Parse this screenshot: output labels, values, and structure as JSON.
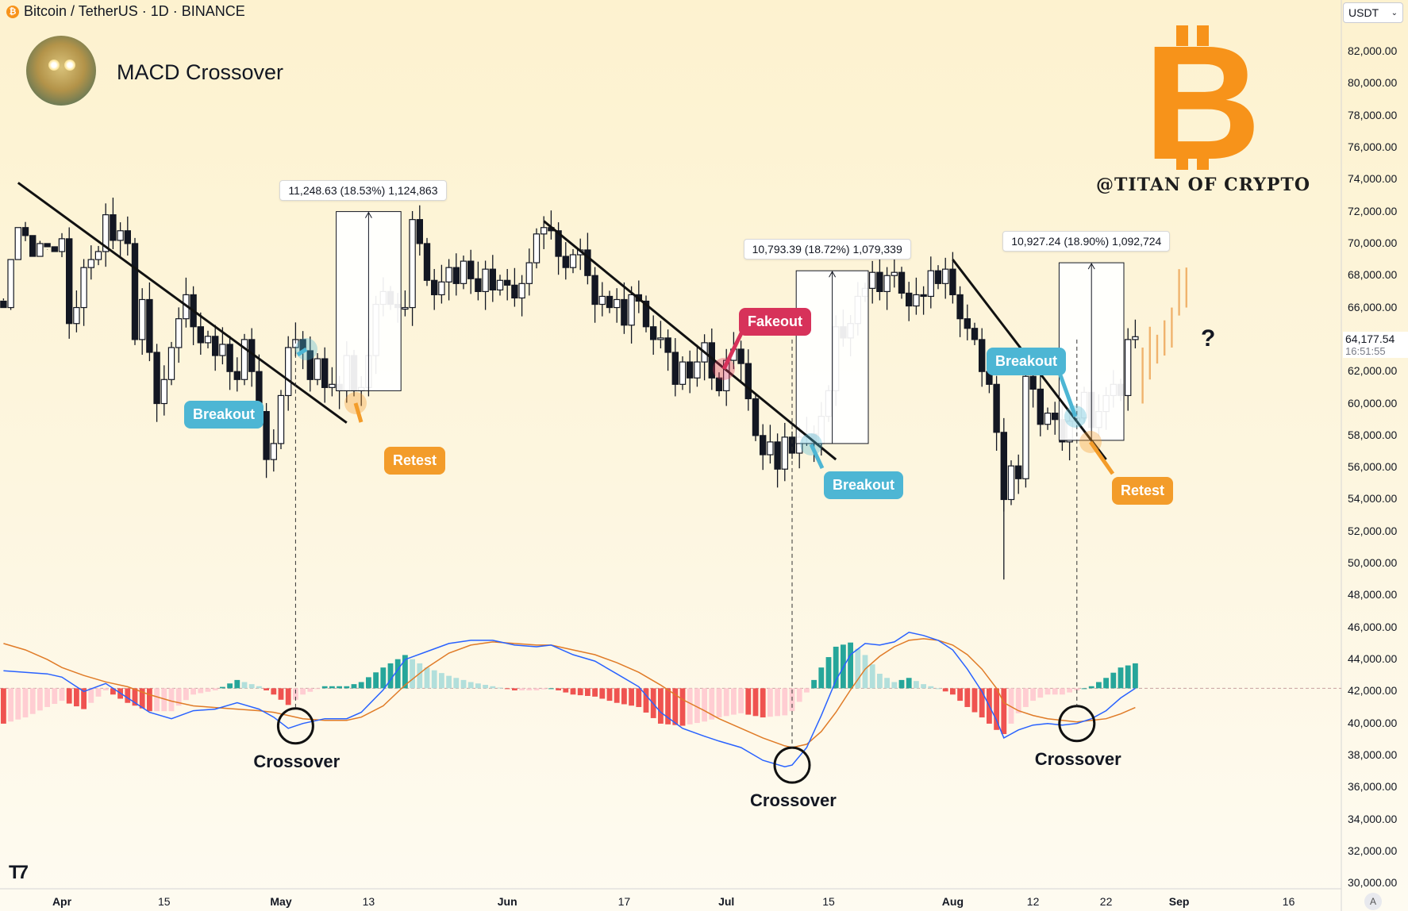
{
  "header": {
    "title": "Bitcoin / TetherUS · 1D · BINANCE",
    "coin_icon": "btc-coin-icon"
  },
  "chart_title": "MACD Crossover",
  "brand": "@TITAN OF CRYPTO",
  "currency_select": "USDT",
  "bitcoin_logo": {
    "glyph": "B",
    "color": "#f7931a"
  },
  "colors": {
    "up": "#ffffff",
    "down": "#131722",
    "breakout": "#4db6d4",
    "retest": "#f39c2a",
    "fakeout": "#d7325a",
    "macd_line": "#2962ff",
    "signal_line": "#e07b27",
    "hist_pos_strong": "#26a69a",
    "hist_pos_weak": "#b2dfdb",
    "hist_neg_strong": "#ef5350",
    "hist_neg_weak": "#ffcdd2",
    "projection": "#f0b36d"
  },
  "last_price": {
    "value": "64,177.54",
    "countdown": "16:51:55"
  },
  "question_mark": "?",
  "chart_data": {
    "type": "candlestick",
    "title": "MACD Crossover",
    "ylim": [
      30000,
      83000
    ],
    "y_ticks": [
      "82,000.00",
      "80,000.00",
      "78,000.00",
      "76,000.00",
      "74,000.00",
      "72,000.00",
      "70,000.00",
      "68,000.00",
      "66,000.00",
      "64,000.00",
      "62,000.00",
      "60,000.00",
      "58,000.00",
      "56,000.00",
      "54,000.00",
      "52,000.00",
      "50,000.00",
      "48,000.00",
      "46,000.00",
      "44,000.00",
      "42,000.00",
      "40,000.00",
      "38,000.00",
      "36,000.00",
      "34,000.00",
      "32,000.00",
      "30,000.00"
    ],
    "x_ticks": [
      {
        "label": "Apr",
        "bold": true,
        "day": 0
      },
      {
        "label": "15",
        "bold": false,
        "day": 14
      },
      {
        "label": "May",
        "bold": true,
        "day": 30
      },
      {
        "label": "13",
        "bold": false,
        "day": 42
      },
      {
        "label": "Jun",
        "bold": true,
        "day": 61
      },
      {
        "label": "17",
        "bold": false,
        "day": 77
      },
      {
        "label": "Jul",
        "bold": true,
        "day": 91
      },
      {
        "label": "15",
        "bold": false,
        "day": 105
      },
      {
        "label": "Aug",
        "bold": true,
        "day": 122
      },
      {
        "label": "12",
        "bold": false,
        "day": 133
      },
      {
        "label": "22",
        "bold": false,
        "day": 143
      },
      {
        "label": "Sep",
        "bold": true,
        "day": 153
      },
      {
        "label": "16",
        "bold": false,
        "day": 168
      }
    ],
    "closes": [
      [
        -8,
        66000
      ],
      [
        -7,
        69000
      ],
      [
        -6,
        71000
      ],
      [
        -5,
        70500
      ],
      [
        -4,
        69200
      ],
      [
        -3,
        70000
      ],
      [
        -2,
        69800
      ],
      [
        -1,
        69500
      ],
      [
        0,
        70300
      ],
      [
        1,
        65000
      ],
      [
        2,
        66000
      ],
      [
        3,
        68500
      ],
      [
        4,
        69000
      ],
      [
        5,
        69500
      ],
      [
        6,
        71800
      ],
      [
        7,
        70200
      ],
      [
        8,
        70800
      ],
      [
        9,
        70000
      ],
      [
        10,
        64000
      ],
      [
        11,
        66500
      ],
      [
        12,
        63200
      ],
      [
        13,
        60000
      ],
      [
        14,
        61500
      ],
      [
        15,
        63500
      ],
      [
        16,
        65300
      ],
      [
        17,
        66800
      ],
      [
        18,
        64800
      ],
      [
        19,
        63800
      ],
      [
        20,
        64200
      ],
      [
        21,
        63000
      ],
      [
        22,
        63700
      ],
      [
        23,
        62000
      ],
      [
        24,
        61500
      ],
      [
        25,
        64000
      ],
      [
        26,
        62000
      ],
      [
        27,
        59500
      ],
      [
        28,
        56500
      ],
      [
        29,
        57500
      ],
      [
        30,
        60500
      ],
      [
        31,
        63500
      ],
      [
        32,
        64000
      ],
      [
        33,
        63300
      ],
      [
        34,
        61500
      ],
      [
        35,
        62800
      ],
      [
        36,
        61000
      ],
      [
        37,
        61200
      ],
      [
        38,
        60800
      ],
      [
        39,
        63000
      ],
      [
        40,
        60800
      ],
      [
        41,
        61000
      ],
      [
        42,
        63000
      ],
      [
        43,
        66200
      ],
      [
        44,
        67000
      ],
      [
        45,
        66200
      ],
      [
        46,
        66000
      ],
      [
        47,
        66000
      ],
      [
        48,
        71500
      ],
      [
        49,
        70000
      ],
      [
        50,
        67700
      ],
      [
        51,
        66800
      ],
      [
        52,
        67600
      ],
      [
        53,
        68500
      ],
      [
        54,
        67500
      ],
      [
        55,
        68900
      ],
      [
        56,
        67800
      ],
      [
        57,
        67000
      ],
      [
        58,
        68400
      ],
      [
        59,
        67100
      ],
      [
        60,
        67700
      ],
      [
        61,
        67400
      ],
      [
        62,
        66600
      ],
      [
        63,
        67500
      ],
      [
        64,
        68800
      ],
      [
        65,
        70600
      ],
      [
        66,
        71000
      ],
      [
        67,
        70800
      ],
      [
        68,
        69200
      ],
      [
        69,
        68500
      ],
      [
        70,
        69300
      ],
      [
        71,
        69600
      ],
      [
        72,
        68000
      ],
      [
        73,
        66200
      ],
      [
        74,
        66700
      ],
      [
        75,
        66000
      ],
      [
        76,
        66500
      ],
      [
        77,
        64900
      ],
      [
        78,
        66800
      ],
      [
        79,
        66400
      ],
      [
        80,
        64800
      ],
      [
        81,
        64000
      ],
      [
        82,
        64100
      ],
      [
        83,
        63200
      ],
      [
        84,
        61200
      ],
      [
        85,
        62600
      ],
      [
        86,
        61600
      ],
      [
        87,
        62600
      ],
      [
        88,
        63800
      ],
      [
        89,
        61600
      ],
      [
        90,
        60800
      ],
      [
        91,
        62700
      ],
      [
        92,
        63400
      ],
      [
        93,
        62500
      ],
      [
        94,
        60300
      ],
      [
        95,
        58000
      ],
      [
        96,
        56800
      ],
      [
        97,
        57600
      ],
      [
        98,
        55900
      ],
      [
        99,
        57900
      ],
      [
        100,
        56900
      ],
      [
        101,
        57900
      ],
      [
        102,
        58100
      ],
      [
        103,
        57500
      ],
      [
        104,
        59200
      ],
      [
        105,
        60800
      ],
      [
        106,
        64800
      ],
      [
        107,
        64100
      ],
      [
        108,
        65000
      ],
      [
        109,
        66700
      ],
      [
        110,
        67200
      ],
      [
        111,
        68200
      ],
      [
        112,
        67000
      ],
      [
        113,
        68000
      ],
      [
        114,
        68200
      ],
      [
        115,
        66900
      ],
      [
        116,
        66100
      ],
      [
        117,
        66800
      ],
      [
        118,
        66700
      ],
      [
        119,
        68300
      ],
      [
        120,
        67500
      ],
      [
        121,
        68400
      ],
      [
        122,
        66800
      ],
      [
        123,
        65300
      ],
      [
        124,
        64700
      ],
      [
        125,
        64000
      ],
      [
        126,
        62000
      ],
      [
        127,
        61200
      ],
      [
        128,
        58200
      ],
      [
        129,
        54000
      ],
      [
        130,
        56100
      ],
      [
        131,
        55300
      ],
      [
        132,
        61700
      ],
      [
        133,
        60900
      ],
      [
        134,
        58700
      ],
      [
        135,
        59400
      ],
      [
        136,
        59000
      ],
      [
        137,
        57600
      ],
      [
        138,
        58900
      ],
      [
        139,
        59100
      ],
      [
        140,
        60700
      ],
      [
        141,
        58500
      ],
      [
        142,
        59500
      ],
      [
        143,
        60500
      ],
      [
        144,
        61200
      ],
      [
        145,
        60500
      ],
      [
        146,
        64000
      ],
      [
        147,
        64177
      ]
    ],
    "projection_bars": [
      {
        "day": 148,
        "low": 60000,
        "high": 63500
      },
      {
        "day": 149,
        "low": 61500,
        "high": 64800
      },
      {
        "day": 150,
        "low": 62500,
        "high": 64300
      },
      {
        "day": 151,
        "low": 63000,
        "high": 65200
      },
      {
        "day": 152,
        "low": 63500,
        "high": 66000
      },
      {
        "day": 153,
        "low": 65500,
        "high": 68400
      },
      {
        "day": 154,
        "low": 66000,
        "high": 68500
      }
    ],
    "trendlines": [
      {
        "from": [
          -6,
          73800
        ],
        "to": [
          39,
          58800
        ]
      },
      {
        "from": [
          66,
          71400
        ],
        "to": [
          106,
          56500
        ]
      },
      {
        "from": [
          122,
          69000
        ],
        "to": [
          143,
          56500
        ]
      }
    ],
    "measure_boxes": [
      {
        "label": "11,248.63 (18.53%) 1,124,863",
        "from_day": 38,
        "to_day": 46,
        "low": 60800,
        "high": 72000
      },
      {
        "label": "10,793.39 (18.72%) 1,079,339",
        "from_day": 101,
        "to_day": 110,
        "low": 57500,
        "high": 68300
      },
      {
        "label": "10,927.24 (18.90%) 1,092,724",
        "from_day": 137,
        "to_day": 145,
        "low": 57700,
        "high": 68800
      }
    ],
    "callouts": [
      {
        "label": "Breakout",
        "kind": "breakout"
      },
      {
        "label": "Retest",
        "kind": "retest"
      },
      {
        "label": "Fakeout",
        "kind": "fakeout"
      },
      {
        "label": "Breakout",
        "kind": "breakout"
      },
      {
        "label": "Breakout",
        "kind": "breakout"
      },
      {
        "label": "Retest",
        "kind": "retest"
      }
    ],
    "macd": {
      "series": [
        {
          "name": "MACD",
          "color": "#2962ff"
        },
        {
          "name": "Signal",
          "color": "#e07b27"
        }
      ],
      "zero_level": 42200,
      "crossovers": [
        {
          "label": "Crossover",
          "day": 32
        },
        {
          "label": "Crossover",
          "day": 100
        },
        {
          "label": "Crossover",
          "day": 139
        }
      ],
      "macd_points": [
        [
          -8,
          43300
        ],
        [
          -5,
          43200
        ],
        [
          -2,
          43100
        ],
        [
          0,
          42900
        ],
        [
          3,
          42000
        ],
        [
          6,
          42500
        ],
        [
          9,
          41600
        ],
        [
          12,
          40700
        ],
        [
          15,
          40300
        ],
        [
          18,
          40800
        ],
        [
          21,
          40900
        ],
        [
          24,
          41300
        ],
        [
          27,
          40900
        ],
        [
          29,
          40400
        ],
        [
          31,
          39700
        ],
        [
          33,
          40000
        ],
        [
          36,
          40300
        ],
        [
          39,
          40300
        ],
        [
          41,
          40700
        ],
        [
          44,
          42100
        ],
        [
          47,
          44000
        ],
        [
          50,
          44500
        ],
        [
          53,
          45000
        ],
        [
          56,
          45200
        ],
        [
          59,
          45200
        ],
        [
          62,
          44900
        ],
        [
          65,
          44800
        ],
        [
          67,
          44900
        ],
        [
          70,
          44300
        ],
        [
          73,
          43900
        ],
        [
          76,
          43100
        ],
        [
          79,
          42300
        ],
        [
          82,
          40700
        ],
        [
          85,
          39700
        ],
        [
          88,
          39200
        ],
        [
          90,
          38900
        ],
        [
          93,
          38500
        ],
        [
          96,
          37700
        ],
        [
          99,
          37300
        ],
        [
          100,
          37400
        ],
        [
          102,
          38500
        ],
        [
          104,
          40500
        ],
        [
          106,
          42700
        ],
        [
          108,
          44300
        ],
        [
          110,
          45000
        ],
        [
          112,
          44900
        ],
        [
          114,
          45100
        ],
        [
          116,
          45700
        ],
        [
          118,
          45500
        ],
        [
          120,
          45200
        ],
        [
          122,
          44600
        ],
        [
          124,
          43400
        ],
        [
          126,
          42000
        ],
        [
          128,
          40200
        ],
        [
          129,
          39100
        ],
        [
          131,
          39600
        ],
        [
          133,
          39900
        ],
        [
          135,
          40000
        ],
        [
          137,
          39900
        ],
        [
          139,
          40000
        ],
        [
          141,
          40300
        ],
        [
          143,
          40800
        ],
        [
          145,
          41600
        ],
        [
          147,
          42200
        ]
      ],
      "signal_points": [
        [
          -8,
          45000
        ],
        [
          -5,
          44600
        ],
        [
          -2,
          44000
        ],
        [
          0,
          43500
        ],
        [
          3,
          43000
        ],
        [
          6,
          42600
        ],
        [
          9,
          42300
        ],
        [
          12,
          41800
        ],
        [
          15,
          41400
        ],
        [
          18,
          41100
        ],
        [
          21,
          41000
        ],
        [
          24,
          40900
        ],
        [
          27,
          40800
        ],
        [
          29,
          40700
        ],
        [
          31,
          40500
        ],
        [
          33,
          40300
        ],
        [
          36,
          40200
        ],
        [
          39,
          40200
        ],
        [
          41,
          40400
        ],
        [
          44,
          41100
        ],
        [
          47,
          42400
        ],
        [
          50,
          43500
        ],
        [
          53,
          44400
        ],
        [
          56,
          44900
        ],
        [
          59,
          45100
        ],
        [
          62,
          45000
        ],
        [
          65,
          44900
        ],
        [
          67,
          44900
        ],
        [
          70,
          44600
        ],
        [
          73,
          44300
        ],
        [
          76,
          43800
        ],
        [
          79,
          43200
        ],
        [
          82,
          42400
        ],
        [
          85,
          41500
        ],
        [
          88,
          40800
        ],
        [
          90,
          40300
        ],
        [
          93,
          39700
        ],
        [
          96,
          39100
        ],
        [
          99,
          38600
        ],
        [
          100,
          38500
        ],
        [
          102,
          38700
        ],
        [
          104,
          39500
        ],
        [
          106,
          40700
        ],
        [
          108,
          42100
        ],
        [
          110,
          43400
        ],
        [
          112,
          44200
        ],
        [
          114,
          44800
        ],
        [
          116,
          45200
        ],
        [
          118,
          45300
        ],
        [
          120,
          45200
        ],
        [
          122,
          44900
        ],
        [
          124,
          44300
        ],
        [
          126,
          43400
        ],
        [
          128,
          42200
        ],
        [
          129,
          41300
        ],
        [
          131,
          40800
        ],
        [
          133,
          40500
        ],
        [
          135,
          40300
        ],
        [
          137,
          40200
        ],
        [
          139,
          40100
        ],
        [
          141,
          40200
        ],
        [
          143,
          40300
        ],
        [
          145,
          40600
        ],
        [
          147,
          41000
        ]
      ]
    },
    "grid": false,
    "legend": "none"
  }
}
